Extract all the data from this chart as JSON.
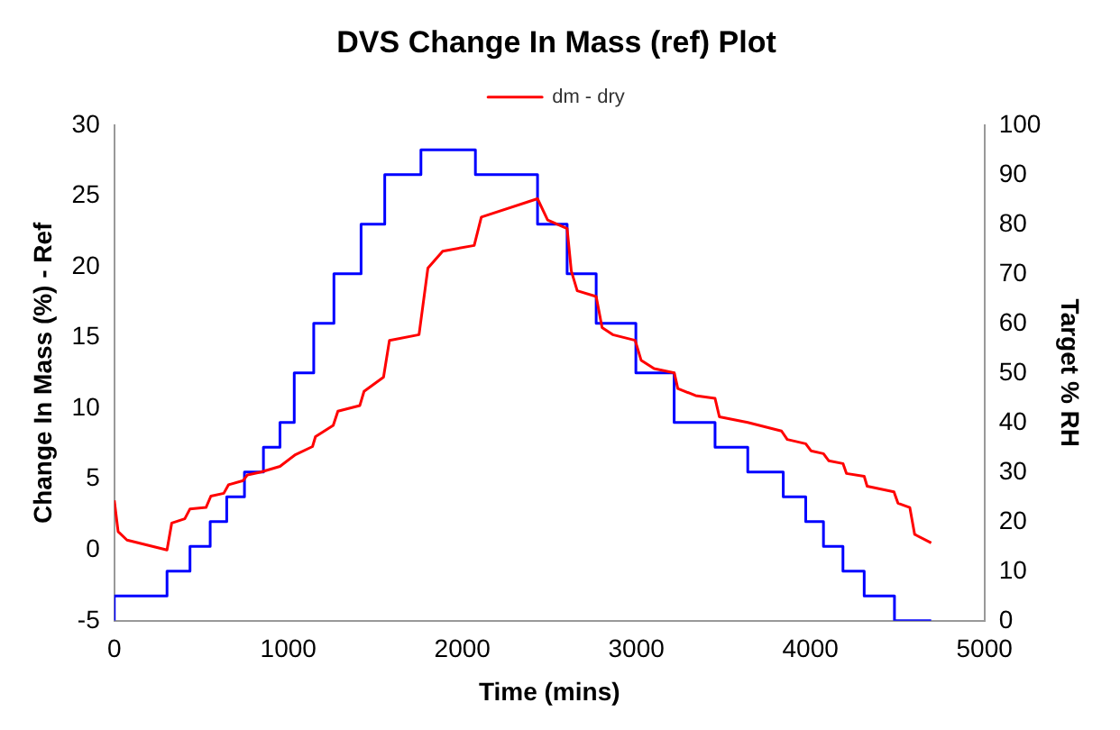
{
  "chart_data": {
    "type": "line",
    "title": "DVS Change In Mass (ref) Plot",
    "xlabel": "Time (mins)",
    "ylabel": "Change In Mass (%) - Ref",
    "y2label": "Target % RH",
    "xlim": [
      0,
      5000
    ],
    "xticks": [
      0,
      1000,
      2000,
      3000,
      4000,
      5000
    ],
    "ylim": [
      -5,
      30
    ],
    "yticks": [
      -5,
      0,
      5,
      10,
      15,
      20,
      25,
      30
    ],
    "y2lim": [
      0,
      100
    ],
    "y2ticks": [
      0,
      10,
      20,
      30,
      40,
      50,
      60,
      70,
      80,
      90,
      100
    ],
    "grid": false,
    "legend": "top",
    "marker": "none",
    "line_style": "solid",
    "series": [
      {
        "name": "dm - dry",
        "type": "line",
        "color": "#ff0000",
        "x": [
          0,
          22,
          73,
          303,
          330,
          405,
          435,
          527,
          555,
          629,
          656,
          741,
          765,
          843,
          952,
          1037,
          1139,
          1156,
          1258,
          1285,
          1411,
          1435,
          1547,
          1581,
          1751,
          1802,
          1887,
          2068,
          2109,
          2432,
          2490,
          2602,
          2626,
          2660,
          2769,
          2803,
          2864,
          2993,
          3027,
          3102,
          3218,
          3238,
          3340,
          3452,
          3477,
          3640,
          3834,
          3867,
          3973,
          4003,
          4075,
          4105,
          4187,
          4207,
          4309,
          4326,
          4480,
          4503,
          4571,
          4599,
          4694
        ],
        "values": [
          3.5,
          1.3,
          0.7,
          0,
          1.9,
          2.2,
          2.9,
          3.0,
          3.8,
          4.0,
          4.6,
          4.9,
          5.3,
          5.5,
          5.9,
          6.7,
          7.3,
          8.0,
          8.8,
          9.8,
          10.2,
          11.2,
          12.2,
          14.8,
          15.2,
          19.9,
          21.1,
          21.5,
          23.5,
          24.8,
          23.3,
          22.7,
          19.7,
          18.3,
          17.9,
          15.7,
          15.2,
          14.8,
          13.4,
          12.8,
          12.5,
          11.4,
          10.9,
          10.7,
          9.4,
          9.0,
          8.4,
          7.8,
          7.5,
          7.0,
          6.8,
          6.3,
          6.1,
          5.4,
          5.2,
          4.5,
          4.1,
          3.3,
          3.0,
          1.1,
          0.5
        ]
      },
      {
        "type": "step",
        "axis": "y2",
        "color": "#0000ff",
        "x": [
          0,
          303,
          435,
          551,
          646,
          748,
          857,
          952,
          1034,
          1146,
          1262,
          1418,
          1554,
          1762,
          2075,
          2432,
          2602,
          2769,
          2997,
          3217,
          3452,
          3640,
          3844,
          3973,
          4075,
          4187,
          4309,
          4483,
          4571,
          4694
        ],
        "values": [
          0,
          5,
          10,
          15,
          20,
          25,
          30,
          35,
          40,
          50,
          60,
          70,
          80,
          90,
          95,
          90,
          80,
          70,
          60,
          50,
          40,
          35,
          30,
          25,
          20,
          15,
          10,
          5,
          0,
          0
        ]
      }
    ]
  }
}
